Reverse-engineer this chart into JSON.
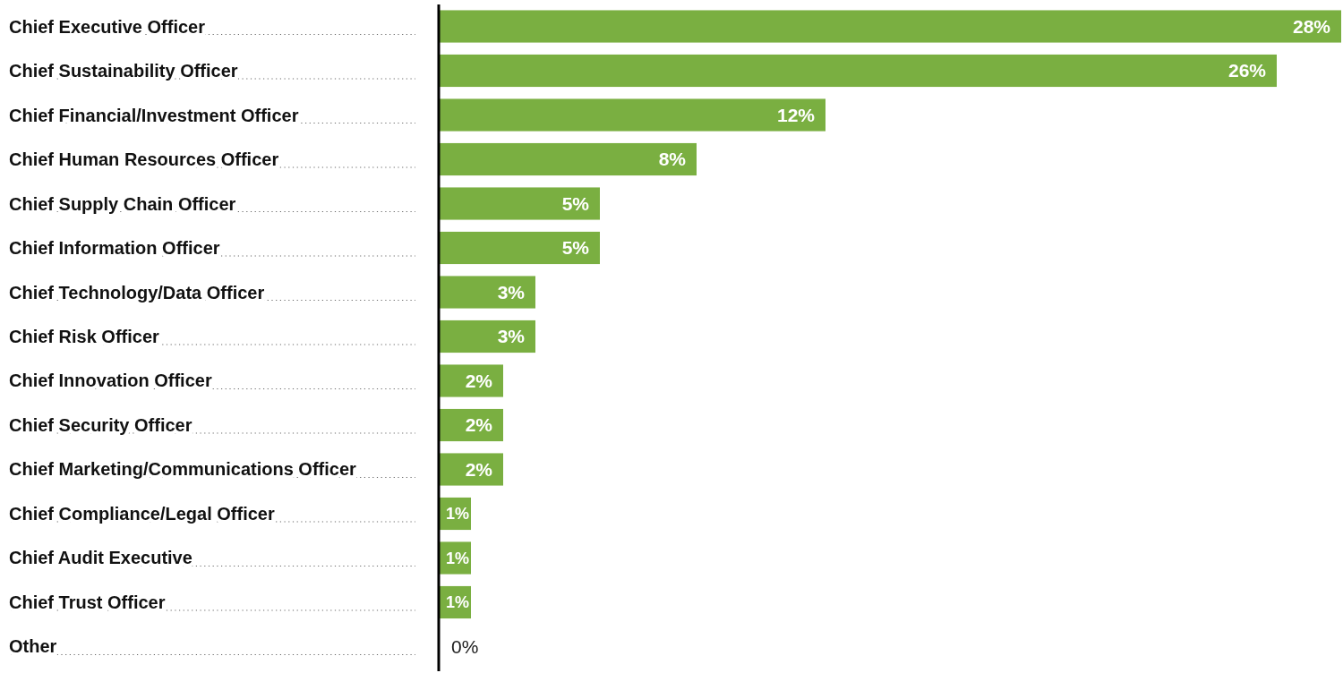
{
  "chart_data": {
    "type": "bar",
    "orientation": "horizontal",
    "categories": [
      "Chief Executive Officer",
      "Chief Sustainability Officer",
      "Chief Financial/Investment Officer",
      "Chief Human Resources Officer",
      "Chief Supply Chain Officer",
      "Chief Information Officer",
      "Chief Technology/Data Officer",
      "Chief Risk Officer",
      "Chief Innovation Officer",
      "Chief Security Officer",
      "Chief Marketing/Communications Officer",
      "Chief Compliance/Legal Officer",
      "Chief Audit Executive",
      "Chief Trust Officer",
      "Other"
    ],
    "values": [
      28,
      26,
      12,
      8,
      5,
      5,
      3,
      3,
      2,
      2,
      2,
      1,
      1,
      1,
      0
    ],
    "value_labels": [
      "28%",
      "26%",
      "12%",
      "8%",
      "5%",
      "5%",
      "3%",
      "3%",
      "2%",
      "2%",
      "2%",
      "1%",
      "1%",
      "1%",
      "0%"
    ],
    "color": "#7aaf41",
    "grid": false
  }
}
